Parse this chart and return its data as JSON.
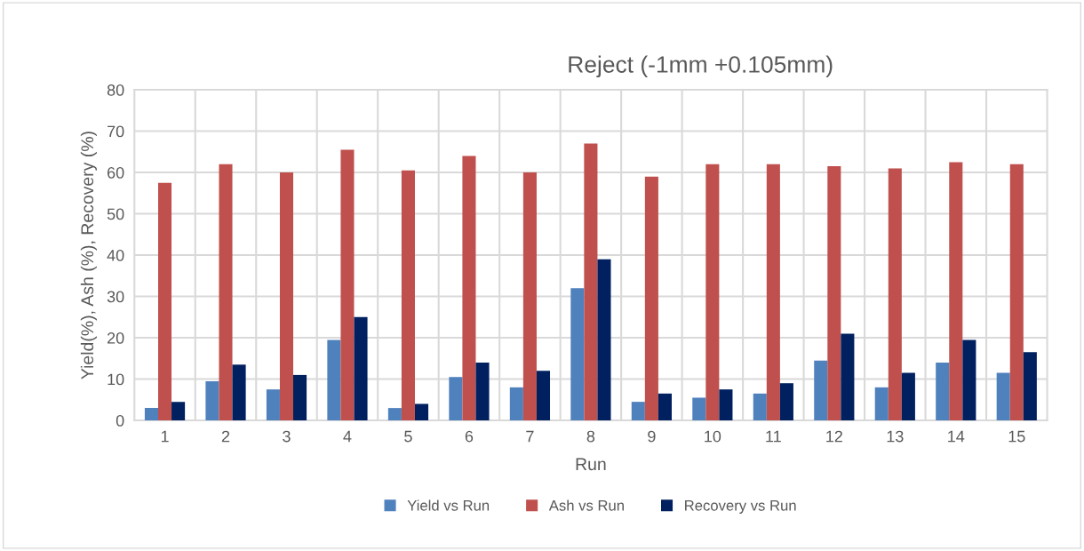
{
  "chart_data": {
    "type": "bar",
    "title": "Reject (-1mm +0.105mm)",
    "xlabel": "Run",
    "ylabel": "Yield(%), Ash (%), Recovery (%)",
    "categories": [
      "1",
      "2",
      "3",
      "4",
      "5",
      "6",
      "7",
      "8",
      "9",
      "10",
      "11",
      "12",
      "13",
      "14",
      "15"
    ],
    "series": [
      {
        "name": "Yield vs Run",
        "color": "#4f81bd",
        "values": [
          3,
          9.5,
          7.5,
          19.5,
          3,
          10.5,
          8,
          32,
          4.5,
          5.5,
          6.5,
          14.5,
          8,
          14,
          11.5
        ]
      },
      {
        "name": "Ash vs Run",
        "color": "#c0504d",
        "values": [
          57.5,
          62,
          60,
          65.5,
          60.5,
          64,
          60,
          67,
          59,
          62,
          62,
          61.5,
          61,
          62.5,
          62
        ]
      },
      {
        "name": "Recovery vs Run",
        "color": "#002060",
        "values": [
          4.5,
          13.5,
          11,
          25,
          4,
          14,
          12,
          39,
          6.5,
          7.5,
          9,
          21,
          11.5,
          19.5,
          16.5
        ]
      }
    ],
    "ylim": [
      0,
      80
    ],
    "yticks": [
      0,
      10,
      20,
      30,
      40,
      50,
      60,
      70,
      80
    ],
    "grid": true,
    "legend": "bottom"
  }
}
